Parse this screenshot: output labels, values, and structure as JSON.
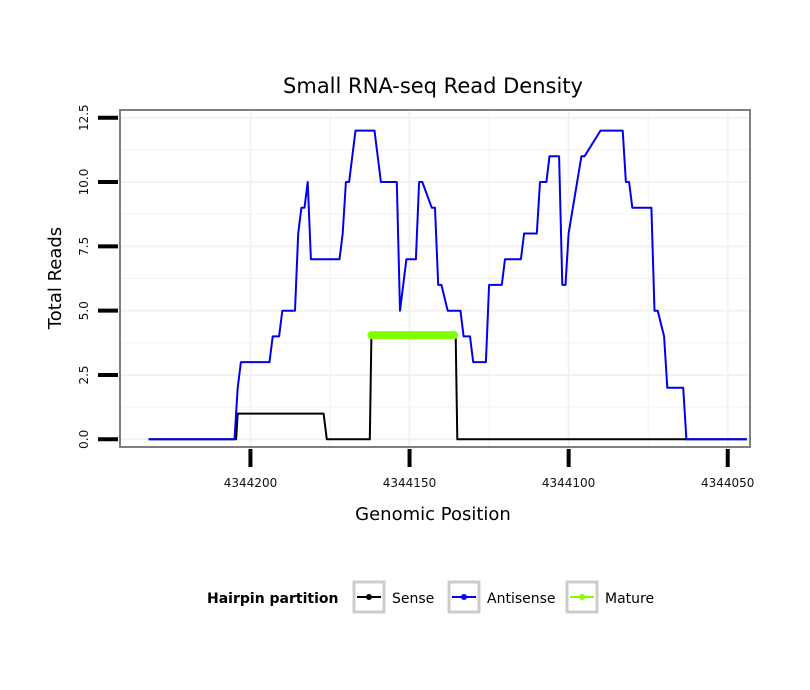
{
  "colors": {
    "sense": "#000000",
    "antisense": "#0000ee",
    "mature": "#7fff00",
    "frame": "#7f7f7f",
    "grid": "#f2f2f2"
  },
  "chart_data": {
    "type": "line",
    "title": "Small RNA-seq Read Density",
    "xlabel": "Genomic Position",
    "ylabel": "Total Reads",
    "xlim": [
      4344241,
      4344043
    ],
    "ylim": [
      -0.3,
      12.8
    ],
    "x_reversed": true,
    "x_ticks": [
      4344200,
      4344150,
      4344100,
      4344050
    ],
    "x_tick_labels": [
      "4344200",
      "4344150",
      "4344100",
      "4344050"
    ],
    "y_ticks": [
      0,
      2.5,
      5,
      7.5,
      10,
      12.5
    ],
    "y_tick_labels": [
      "0.0",
      "2.5",
      "5.0",
      "7.5",
      "10.0",
      "12.5"
    ],
    "legend": {
      "title": "Hairpin partition",
      "position": "bottom",
      "entries": [
        "Sense",
        "Antisense",
        "Mature"
      ]
    },
    "series": [
      {
        "name": "Sense",
        "x": [
          4344232,
          4344204.5,
          4344204,
          4344177,
          4344176,
          4344162.5,
          4344162,
          4344154,
          4344153,
          4344135.5,
          4344135,
          4344044
        ],
        "y": [
          0,
          0,
          1,
          1,
          0,
          0,
          4,
          4,
          4,
          4,
          0,
          0
        ]
      },
      {
        "name": "Antisense",
        "x": [
          4344232,
          4344205,
          4344204,
          4344203,
          4344194,
          4344193,
          4344191,
          4344190,
          4344186,
          4344185,
          4344184,
          4344183,
          4344182,
          4344181,
          4344180,
          4344172,
          4344171,
          4344170,
          4344169,
          4344167,
          4344166,
          4344161,
          4344160,
          4344159,
          4344154,
          4344153,
          4344151,
          4344150,
          4344148,
          4344147,
          4344146,
          4344143,
          4344142,
          4344141,
          4344140,
          4344138,
          4344137,
          4344134,
          4344133,
          4344131,
          4344130,
          4344126,
          4344125,
          4344121,
          4344120,
          4344117,
          4344116,
          4344115,
          4344114,
          4344110,
          4344109,
          4344107,
          4344106,
          4344105,
          4344104,
          4344103,
          4344102,
          4344101,
          4344100,
          4344096,
          4344095,
          4344090,
          4344089,
          4344088,
          4344087,
          4344083,
          4344082,
          4344081,
          4344080,
          4344074,
          4344073,
          4344072,
          4344070,
          4344069,
          4344068,
          4344064,
          4344063,
          4344058,
          4344057,
          4344044
        ],
        "y": [
          0,
          0,
          2,
          3,
          3,
          4,
          4,
          5,
          5,
          8,
          9,
          9,
          10,
          7,
          7,
          7,
          8,
          10,
          10,
          12,
          12,
          12,
          11,
          10,
          10,
          5,
          7,
          7,
          7,
          10,
          10,
          9,
          9,
          6,
          6,
          5,
          5,
          5,
          4,
          4,
          3,
          3,
          6,
          6,
          7,
          7,
          7,
          7,
          8,
          8,
          10,
          10,
          11,
          11,
          11,
          11,
          6,
          6,
          8,
          11,
          11,
          12,
          12,
          12,
          12,
          12,
          10,
          10,
          9,
          9,
          5,
          5,
          4,
          2,
          2,
          2,
          0,
          0,
          0,
          0
        ]
      },
      {
        "name": "Mature",
        "x": [
          4344162,
          4344136
        ],
        "y": [
          4.05,
          4.05
        ]
      }
    ]
  }
}
